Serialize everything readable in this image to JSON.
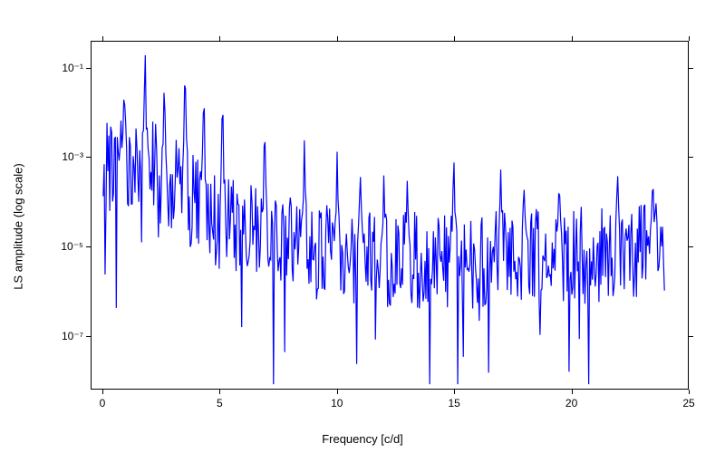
{
  "chart": {
    "type": "line",
    "xlabel": "Frequency [c/d]",
    "ylabel": "LS amplitude (log scale)",
    "xlim": [
      -0.5,
      25
    ],
    "ylim_log10": [
      -8.2,
      -0.4
    ],
    "yscale": "log",
    "xticks": [
      0,
      5,
      10,
      15,
      20,
      25
    ],
    "yticks_log10": [
      -7,
      -5,
      -3,
      -1
    ],
    "ytick_labels": [
      "10⁻⁷",
      "10⁻⁵",
      "10⁻³",
      "10⁻¹"
    ],
    "line_color": "#0000ff",
    "line_width": 1.2,
    "background_color": "#ffffff",
    "border_color": "#000000",
    "tick_fontsize": 12,
    "label_fontsize": 13,
    "peaks": [
      {
        "x": 0.9,
        "log10y": -1.65
      },
      {
        "x": 1.8,
        "log10y": -0.6
      },
      {
        "x": 2.6,
        "log10y": -1.4
      },
      {
        "x": 3.5,
        "log10y": -1.3
      },
      {
        "x": 4.3,
        "log10y": -1.85
      },
      {
        "x": 5.1,
        "log10y": -2.0
      },
      {
        "x": 6.9,
        "log10y": -2.65
      },
      {
        "x": 8.6,
        "log10y": -2.55
      },
      {
        "x": 10.0,
        "log10y": -2.7
      },
      {
        "x": 11.0,
        "log10y": -3.25
      },
      {
        "x": 12.0,
        "log10y": -3.3
      },
      {
        "x": 13.0,
        "log10y": -3.5
      },
      {
        "x": 15.0,
        "log10y": -3.0
      },
      {
        "x": 17.0,
        "log10y": -3.2
      },
      {
        "x": 18.0,
        "log10y": -3.6
      },
      {
        "x": 19.5,
        "log10y": -3.7
      },
      {
        "x": 22.0,
        "log10y": -3.4
      },
      {
        "x": 23.5,
        "log10y": -3.65
      }
    ],
    "baseline_log10": -5.0,
    "noise_floor_log10": -4.8,
    "noise_amplitude_log10": 2.2,
    "noise_density": 600,
    "trend": [
      {
        "x": 0,
        "log10y": -3.0
      },
      {
        "x": 2,
        "log10y": -2.8
      },
      {
        "x": 5,
        "log10y": -4.2
      },
      {
        "x": 10,
        "log10y": -4.9
      },
      {
        "x": 15,
        "log10y": -5.0
      },
      {
        "x": 20,
        "log10y": -4.9
      },
      {
        "x": 24,
        "log10y": -4.7
      }
    ]
  }
}
